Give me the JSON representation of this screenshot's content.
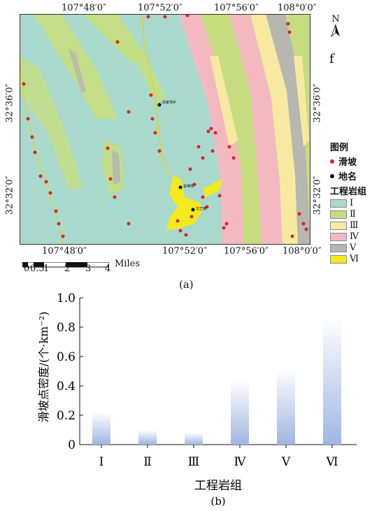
{
  "map": {
    "top_longitudes": [
      "107°48′0″",
      "107°52′0″",
      "107°56′0″",
      "108°0′0″"
    ],
    "bottom_longitudes": [
      "107°48′0″",
      "107°52′0″",
      "107°56′0″",
      "108°0′0″"
    ],
    "left_latitudes": [
      "32°36′0″",
      "32°32′0″"
    ],
    "right_latitudes": [
      "32°36′0″",
      "32°32′0″"
    ],
    "north_arrow": "N",
    "panel_letter": "f",
    "scale_ticks": [
      "0",
      "0.5",
      "1",
      "2",
      "3",
      "4"
    ],
    "scale_unit": "Miles",
    "place_labels": [
      "凤家湾乡",
      "喜神坝",
      "汉王镇"
    ],
    "legend": {
      "title": "图例",
      "landslide": "滑坡",
      "place": "地名",
      "group_title": "工程岩组",
      "groups": [
        "Ⅰ",
        "Ⅱ",
        "Ⅲ",
        "Ⅳ",
        "Ⅴ",
        "Ⅵ"
      ],
      "group_colors": [
        "#a9d9cc",
        "#c6dd7f",
        "#f7eaa0",
        "#f4b9c0",
        "#b5b7b0",
        "#f5ea1e"
      ],
      "landslide_color": "#d9262a",
      "place_color": "#000000"
    },
    "caption": "(a)"
  },
  "chart_data": {
    "type": "bar",
    "categories": [
      "Ⅰ",
      "Ⅱ",
      "Ⅲ",
      "Ⅳ",
      "Ⅴ",
      "Ⅵ"
    ],
    "values": [
      0.22,
      0.1,
      0.08,
      0.44,
      0.52,
      0.87
    ],
    "xlabel": "工程岩组",
    "ylabel": "滑坡点密度/(个·km⁻²)",
    "ylim": [
      0,
      1.0
    ],
    "yticks": [
      "0",
      "0.2",
      "0.4",
      "0.6",
      "0.8",
      "1.0"
    ],
    "bar_color": "#9fb6e2",
    "grid": false,
    "caption": "(b)"
  }
}
